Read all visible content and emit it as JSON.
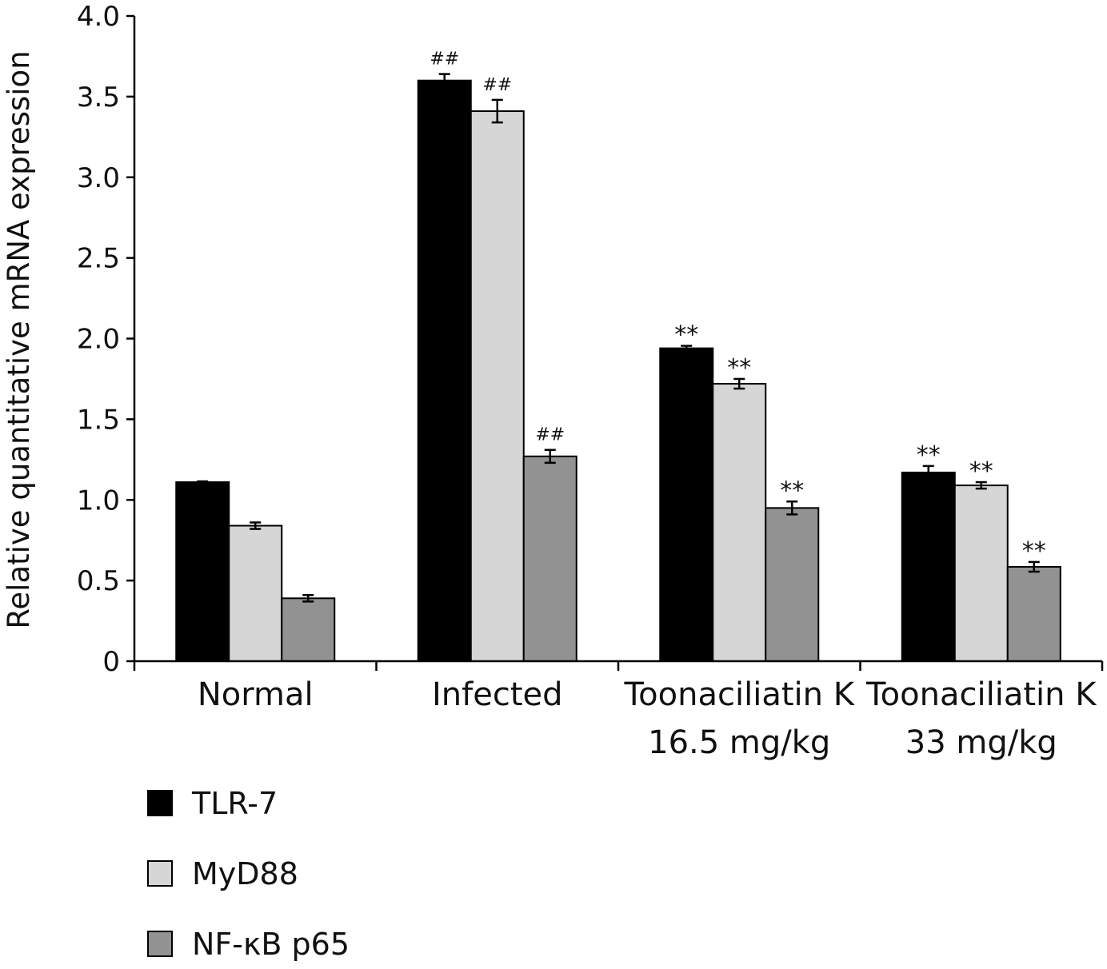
{
  "chart_data": {
    "type": "bar",
    "title": "",
    "xlabel": "",
    "ylabel": "Relative quantitative mRNA expression",
    "ylim": [
      0,
      4.0
    ],
    "yticks": [
      "0",
      "0.5",
      "1.0",
      "1.5",
      "2.0",
      "2.5",
      "3.0",
      "3.5",
      "4.0"
    ],
    "grid": false,
    "legend_placement": "bottom-left",
    "categories": [
      [
        "Normal"
      ],
      [
        "Infected"
      ],
      [
        "Toonaciliatin K",
        "16.5 mg/kg"
      ],
      [
        "Toonaciliatin K",
        "33 mg/kg"
      ]
    ],
    "series": [
      {
        "name": "TLR-7",
        "color": "#000000",
        "values": [
          1.11,
          3.6,
          1.94,
          1.17
        ],
        "errors": [
          0.005,
          0.04,
          0.015,
          0.04
        ],
        "annotations": [
          "",
          "##",
          "**",
          "**"
        ]
      },
      {
        "name": "MyD88",
        "color": "#d6d6d6",
        "values": [
          0.84,
          3.41,
          1.72,
          1.09
        ],
        "errors": [
          0.02,
          0.07,
          0.03,
          0.02
        ],
        "annotations": [
          "",
          "##",
          "**",
          "**"
        ]
      },
      {
        "name": "NF-κB p65",
        "color": "#929292",
        "values": [
          0.39,
          1.27,
          0.95,
          0.585
        ],
        "errors": [
          0.02,
          0.04,
          0.04,
          0.03
        ],
        "annotations": [
          "",
          "##",
          "**",
          "**"
        ]
      }
    ]
  }
}
